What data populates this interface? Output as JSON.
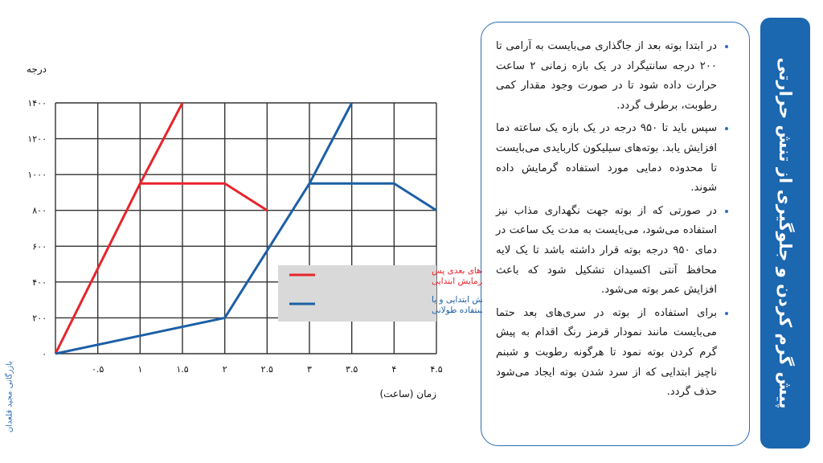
{
  "title": "پیش گرم کردن و جلوگیری از تنش حرارتی",
  "bullets": [
    "در ابتدا بوته بعد از جاگذاری می‌بایست به آرامی تا ۲۰۰ درجه سانتیگراد در یک بازه زمانی ۲ ساعت حرارت داده شود تا در صورت وجود مقدار کمی رطوبت، برطرف گردد.",
    "سپس باید تا ۹۵۰ درجه در یک بازه یک ساعته دما افزایش یابد. بوته‌های سیلیکون کاربایدی می‌بایست تا محدوده دمایی مورد استفاده گرمایش داده شوند.",
    "در صورتی که از بوته جهت نگهداری مذاب نیز استفاده می‌شود، می‌بایست به مدت یک ساعت در دمای ۹۵۰ درجه بوته قرار داشته باشد تا یک لایه محافظ آنتی اکسیدان تشکیل شود که باعث افزایش عمر بوته می‌شود.",
    "برای استفاده از بوته در سری‌های بعد حتما می‌بایست مانند نمودار قرمز رنگ اقدام به پیش گرم کردن بوته نمود تا هرگونه رطوبت و شبنم ناچیز ابتدایی که از سرد شدن بوته ایجاد می‌شود حذف گردد."
  ],
  "credit": "بازرگانی مجید قلعدان",
  "chart_data": {
    "type": "line",
    "ylabel": "درجه",
    "xlabel": "زمان (ساعت)",
    "xlim": [
      0,
      4.5
    ],
    "ylim": [
      0,
      1400
    ],
    "x_ticks": [
      0.5,
      1,
      1.5,
      2,
      2.5,
      3,
      3.5,
      4,
      4.5
    ],
    "x_tick_labels": [
      "۰.۵",
      "۱",
      "۱.۵",
      "۲",
      "۲.۵",
      "۳",
      "۳.۵",
      "۴",
      "۴.۵"
    ],
    "y_ticks": [
      0,
      200,
      400,
      600,
      800,
      1000,
      1200,
      1400
    ],
    "y_tick_labels": [
      "۰",
      "۲۰۰",
      "۴۰۰",
      "۶۰۰",
      "۸۰۰",
      "۱۰۰۰",
      "۱۲۰۰",
      "۱۴۰۰"
    ],
    "grid": true,
    "legend_position": "right",
    "series": [
      {
        "name": "در استفاده‌های بعدی پس از پیش گرمایش ابتدایی",
        "color": "#e8242c",
        "x": [
          0,
          1,
          2,
          2.5,
          1.5
        ],
        "y": [
          0,
          950,
          950,
          800,
          1400
        ],
        "path_order": [
          [
            0,
            0
          ],
          [
            1,
            950
          ],
          [
            2,
            950
          ],
          [
            2.5,
            800
          ]
        ],
        "branch": [
          [
            1,
            950
          ],
          [
            1.5,
            1400
          ]
        ]
      },
      {
        "name": "پیش گرمایش ابتدایی و یا پس از عدم استفاده طولانی",
        "color": "#1c5fa6",
        "path_order": [
          [
            0,
            0
          ],
          [
            1,
            100
          ],
          [
            2,
            200
          ],
          [
            3,
            950
          ],
          [
            4,
            950
          ],
          [
            4.5,
            800
          ]
        ],
        "branch": [
          [
            3,
            950
          ],
          [
            3.5,
            1400
          ]
        ]
      }
    ]
  }
}
